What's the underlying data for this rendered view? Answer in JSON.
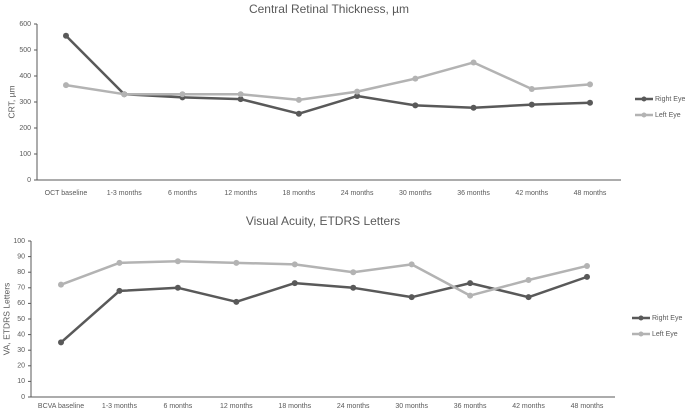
{
  "chart_data": [
    {
      "type": "line",
      "title": "Central Retinal Thickness, µm",
      "xlabel": "",
      "ylabel": "CRT, µm",
      "ylim": [
        0,
        600
      ],
      "yticks": [
        0,
        100,
        200,
        300,
        400,
        500,
        600
      ],
      "grid": false,
      "legend": "right",
      "categories": [
        "OCT baseline",
        "1-3 months",
        "6 months",
        "12 months",
        "18 months",
        "24 months",
        "30 months",
        "36 months",
        "42 months",
        "48 months"
      ],
      "series": [
        {
          "name": "Right Eye",
          "color": "#595959",
          "values": [
            555,
            330,
            318,
            311,
            255,
            323,
            287,
            278,
            290,
            297
          ]
        },
        {
          "name": "Left Eye",
          "color": "#b3b3b3",
          "values": [
            365,
            330,
            330,
            330,
            308,
            340,
            390,
            452,
            350,
            368
          ]
        }
      ]
    },
    {
      "type": "line",
      "title": "Visual Acuity, ETDRS Letters",
      "xlabel": "",
      "ylabel": "VA, ETDRS Letters",
      "ylim": [
        0,
        100
      ],
      "yticks": [
        0,
        10,
        20,
        30,
        40,
        50,
        60,
        70,
        80,
        90,
        100
      ],
      "grid": false,
      "legend": "right",
      "categories": [
        "BCVA baseline",
        "1-3 months",
        "6 months",
        "12 months",
        "18 months",
        "24 months",
        "30 months",
        "36 months",
        "42 months",
        "48 months"
      ],
      "series": [
        {
          "name": "Right Eye",
          "color": "#595959",
          "values": [
            35,
            68,
            70,
            61,
            73,
            70,
            64,
            73,
            64,
            77
          ]
        },
        {
          "name": "Left Eye",
          "color": "#b3b3b3",
          "values": [
            72,
            86,
            87,
            86,
            85,
            80,
            85,
            65,
            75,
            84
          ]
        }
      ]
    }
  ]
}
